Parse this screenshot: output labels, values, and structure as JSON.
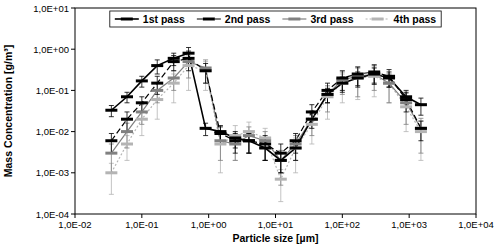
{
  "chart_data": {
    "type": "line",
    "x_label": "Particle size [µm]",
    "y_label": "Mass Concentration [g/m³]",
    "log": true,
    "grid": false,
    "legend": "top",
    "xlim": [
      0.01,
      10000
    ],
    "ylim": [
      0.0001,
      10
    ],
    "xticks": [
      {
        "value": 0.01,
        "label": "1,0E-02"
      },
      {
        "value": 0.1,
        "label": "1,0E-01"
      },
      {
        "value": 1,
        "label": "1,0E+00"
      },
      {
        "value": 10,
        "label": "1,0E+01"
      },
      {
        "value": 100,
        "label": "1,0E+02"
      },
      {
        "value": 1000,
        "label": "1,0E+03"
      },
      {
        "value": 10000,
        "label": "1,0E+04"
      }
    ],
    "yticks": [
      {
        "value": 0.0001,
        "label": "1,0E-04"
      },
      {
        "value": 0.001,
        "label": "1,0E-03"
      },
      {
        "value": 0.01,
        "label": "1,0E-02"
      },
      {
        "value": 0.1,
        "label": "1,0E-01"
      },
      {
        "value": 1,
        "label": "1,0E+00"
      },
      {
        "value": 10,
        "label": "1,0E+01"
      }
    ],
    "x": [
      0.035,
      0.06,
      0.1,
      0.17,
      0.3,
      0.5,
      0.9,
      1.5,
      2.5,
      4,
      7,
      12,
      20,
      35,
      60,
      100,
      170,
      300,
      500,
      900,
      1500
    ],
    "series": [
      {
        "name": "1st pass",
        "color": "#000000",
        "line_style": "solid",
        "marker": "dash",
        "values": [
          0.033,
          0.07,
          0.17,
          0.4,
          0.6,
          0.8,
          0.012,
          0.01,
          0.007,
          0.006,
          0.004,
          0.002,
          0.004,
          0.02,
          0.08,
          0.15,
          0.2,
          0.25,
          0.2,
          0.07,
          0.045
        ],
        "errors": [
          0.01,
          0.02,
          0.05,
          0.15,
          0.2,
          0.3,
          0.004,
          0.004,
          0.003,
          0.003,
          0.002,
          0.001,
          0.002,
          0.008,
          0.03,
          0.06,
          0.08,
          0.1,
          0.08,
          0.03,
          0.02
        ]
      },
      {
        "name": "2nd pass",
        "color": "#000000",
        "line_style": "dashed",
        "marker": "dash",
        "values": [
          0.006,
          0.02,
          0.05,
          0.15,
          0.5,
          0.6,
          0.3,
          0.009,
          0.006,
          0.006,
          0.005,
          0.003,
          0.006,
          0.03,
          0.1,
          0.2,
          0.25,
          0.28,
          0.22,
          0.06,
          0.012
        ],
        "errors": [
          0.003,
          0.01,
          0.02,
          0.07,
          0.2,
          0.3,
          0.15,
          0.004,
          0.003,
          0.003,
          0.003,
          0.002,
          0.003,
          0.015,
          0.05,
          0.1,
          0.12,
          0.14,
          0.1,
          0.03,
          0.006
        ]
      },
      {
        "name": "3rd pass",
        "color": "#808080",
        "line_style": "solid",
        "marker": "dash",
        "values": [
          0.003,
          0.01,
          0.03,
          0.1,
          0.2,
          0.5,
          0.35,
          0.006,
          0.005,
          0.008,
          0.006,
          0.002,
          0.005,
          0.02,
          0.08,
          0.18,
          0.22,
          0.25,
          0.15,
          0.05,
          0.012
        ],
        "errors": [
          0.002,
          0.006,
          0.015,
          0.05,
          0.1,
          0.3,
          0.2,
          0.004,
          0.003,
          0.005,
          0.004,
          0.0015,
          0.003,
          0.012,
          0.05,
          0.1,
          0.15,
          0.15,
          0.1,
          0.035,
          0.009
        ]
      },
      {
        "name": "4th pass",
        "color": "#b4b4b4",
        "line_style": "dotted",
        "marker": "dash",
        "values": [
          0.001,
          0.005,
          0.02,
          0.06,
          0.15,
          0.4,
          0.3,
          0.005,
          0.008,
          0.01,
          0.007,
          0.0007,
          0.004,
          0.015,
          0.07,
          0.15,
          0.2,
          0.22,
          0.15,
          0.04,
          0.01
        ],
        "errors": [
          0.0007,
          0.003,
          0.012,
          0.04,
          0.1,
          0.3,
          0.2,
          0.004,
          0.006,
          0.007,
          0.005,
          0.0005,
          0.003,
          0.01,
          0.05,
          0.1,
          0.14,
          0.15,
          0.1,
          0.03,
          0.008
        ]
      }
    ]
  }
}
